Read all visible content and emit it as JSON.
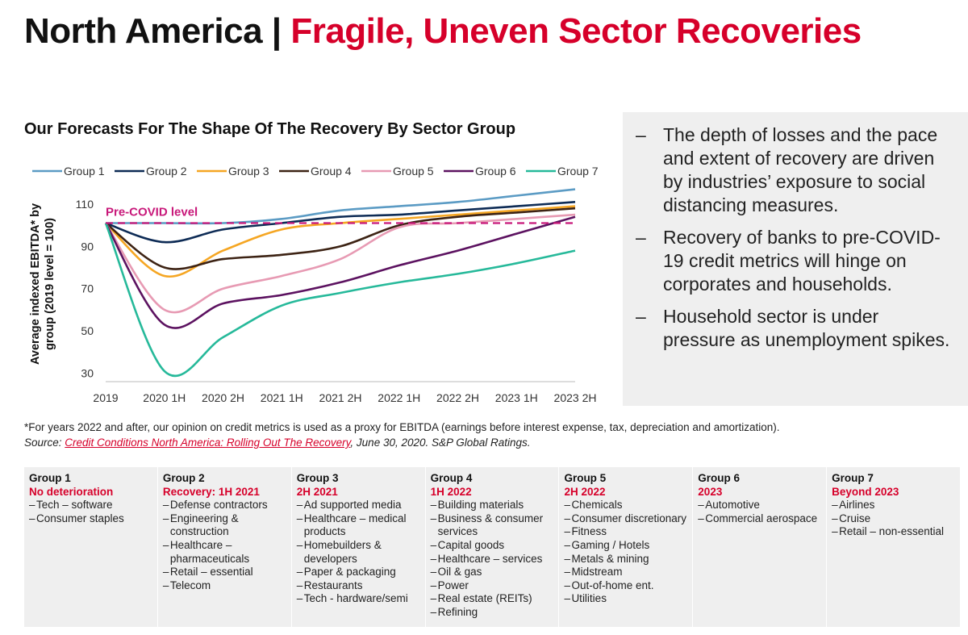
{
  "page_title": {
    "prefix": "North America | ",
    "highlight": "Fragile, Uneven Sector Recoveries"
  },
  "chart_title": "Our Forecasts For The Shape Of The Recovery By Sector Group",
  "colors": {
    "accent": "#d6002a",
    "reference_line": "#c8187a",
    "panel_bg": "#efefef"
  },
  "chart_data": {
    "type": "line",
    "x": [
      "2019",
      "2020 1H",
      "2020 2H",
      "2021 1H",
      "2021 2H",
      "2022 1H",
      "2022 2H",
      "2023 1H",
      "2023 2H"
    ],
    "ylabel": "Average indexed EBITDA* by group (2019 level = 100)",
    "xlabel": "",
    "yticks": [
      30,
      50,
      70,
      90,
      110
    ],
    "ylim": [
      26,
      118
    ],
    "legend_position": "top",
    "grid": false,
    "reference_line": {
      "value": 101,
      "label": "Pre-COVID level"
    },
    "series": [
      {
        "name": "Group 1",
        "color": "#5b9bc4",
        "values": [
          101,
          101,
          101,
          103,
          107,
          109,
          111,
          114,
          117
        ]
      },
      {
        "name": "Group 2",
        "color": "#0d2b55",
        "values": [
          101,
          92,
          98,
          101,
          104,
          105,
          107,
          109,
          111
        ]
      },
      {
        "name": "Group 3",
        "color": "#f5a623",
        "values": [
          101,
          76,
          88,
          98,
          101,
          103,
          105,
          107,
          109
        ]
      },
      {
        "name": "Group 4",
        "color": "#3d2314",
        "values": [
          101,
          80,
          84,
          86,
          90,
          100,
          104,
          106,
          108
        ]
      },
      {
        "name": "Group 5",
        "color": "#e79ab3",
        "values": [
          101,
          60,
          70,
          76,
          84,
          99,
          101,
          103,
          105
        ]
      },
      {
        "name": "Group 6",
        "color": "#5c1260",
        "values": [
          101,
          53,
          63,
          67,
          73,
          81,
          88,
          96,
          104
        ]
      },
      {
        "name": "Group 7",
        "color": "#26b99a",
        "values": [
          101,
          31,
          47,
          62,
          68,
          73,
          77,
          82,
          88
        ]
      }
    ]
  },
  "side_panel": {
    "dash": "–",
    "bullets": [
      "The depth of losses and the pace and extent of recovery are driven by industries’ exposure to social distancing measures.",
      "Recovery of banks to pre-COVID-19 credit metrics will hinge on corporates and households.",
      "Household sector is under pressure as unemployment spikes."
    ]
  },
  "footnote": {
    "note": "*For years 2022 and after, our opinion on credit metrics is used as a proxy for EBITDA (earnings before interest expense, tax, depreciation and amortization).",
    "source_prefix": "Source: ",
    "source_link": "Credit Conditions North America: Rolling Out The Recovery",
    "source_suffix": ", June 30, 2020. S&P Global Ratings."
  },
  "groups": [
    {
      "name": "Group 1",
      "timing": "No deterioration",
      "items": [
        "Tech – software",
        "Consumer staples"
      ]
    },
    {
      "name": "Group 2",
      "timing": "Recovery: 1H 2021",
      "items": [
        "Defense contractors",
        "Engineering & construction",
        "Healthcare – pharmaceuticals",
        "Retail – essential",
        "Telecom"
      ]
    },
    {
      "name": "Group 3",
      "timing": "2H 2021",
      "items": [
        "Ad supported media",
        "Healthcare – medical products",
        "Homebuilders & developers",
        "Paper & packaging",
        "Restaurants",
        "Tech - hardware/semi"
      ]
    },
    {
      "name": "Group 4",
      "timing": "1H 2022",
      "items": [
        "Building materials",
        "Business & consumer services",
        "Capital goods",
        "Healthcare – services",
        "Oil & gas",
        "Power",
        "Real estate (REITs)",
        "Refining"
      ]
    },
    {
      "name": "Group 5",
      "timing": "2H 2022",
      "items": [
        "Chemicals",
        "Consumer discretionary",
        "Fitness",
        "Gaming / Hotels",
        "Metals & mining",
        "Midstream",
        "Out-of-home ent.",
        "Utilities"
      ]
    },
    {
      "name": "Group 6",
      "timing": "2023",
      "items": [
        "Automotive",
        "Commercial aerospace"
      ]
    },
    {
      "name": "Group 7",
      "timing": "Beyond 2023",
      "items": [
        "Airlines",
        "Cruise",
        "Retail – non-essential"
      ]
    }
  ]
}
